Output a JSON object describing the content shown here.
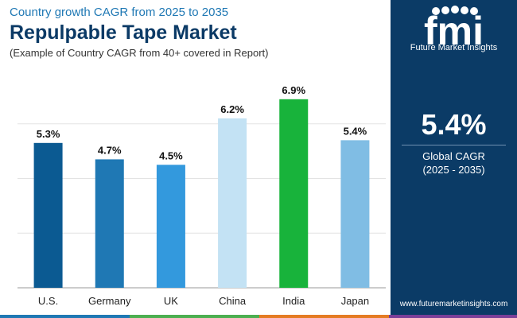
{
  "header": {
    "subtitle": "Country growth CAGR from 2025 to 2035",
    "title": "Repulpable Tape Market",
    "note": "(Example of Country CAGR from 40+ covered in Report)"
  },
  "chart_data": {
    "type": "bar",
    "title": "Repulpable Tape Market",
    "subtitle": "Country growth CAGR from 2025 to 2035",
    "xlabel": "",
    "ylabel": "",
    "categories": [
      "U.S.",
      "Germany",
      "UK",
      "China",
      "India",
      "Japan"
    ],
    "values": [
      5.3,
      4.7,
      4.5,
      6.2,
      6.9,
      5.4
    ],
    "value_labels": [
      "5.3%",
      "4.7%",
      "4.5%",
      "6.2%",
      "6.9%",
      "5.4%"
    ],
    "colors": [
      "#0b5a92",
      "#1f78b4",
      "#3399dd",
      "#c3e2f4",
      "#18b33b",
      "#80bde4"
    ],
    "ylim": [
      0,
      8
    ],
    "gridlines": [
      2,
      4,
      6
    ],
    "grid": true,
    "legend": "none"
  },
  "sidebar": {
    "logo_text": "fmi",
    "logo_name": "Future Market Insights",
    "value": "5.4%",
    "label": "Global CAGR",
    "period": "(2025 - 2035)",
    "website": "www.futuremarketinsights.com"
  },
  "colors": {
    "sidebar_bg": "#0b3b66",
    "title": "#0b3a66",
    "subtitle": "#1f78b4",
    "strip": [
      "#1f78b4",
      "#4caf50",
      "#e57c23",
      "#7b3f98"
    ]
  }
}
